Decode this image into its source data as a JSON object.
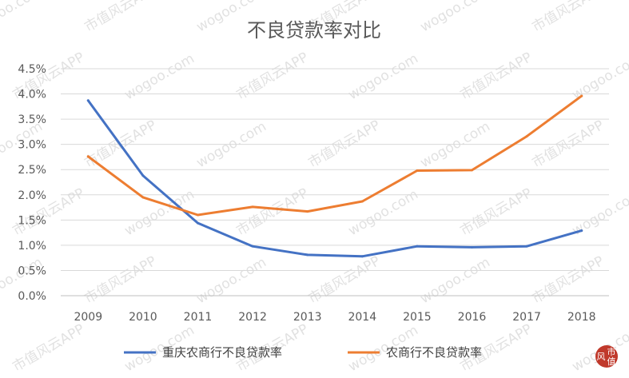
{
  "chart_data": {
    "type": "line",
    "title": "不良贷款率对比",
    "xlabel": "",
    "ylabel": "",
    "categories": [
      "2009",
      "2010",
      "2011",
      "2012",
      "2013",
      "2014",
      "2015",
      "2016",
      "2017",
      "2018"
    ],
    "ylim": [
      0,
      4.5
    ],
    "yticks": [
      "0.0%",
      "0.5%",
      "1.0%",
      "1.5%",
      "2.0%",
      "2.5%",
      "3.0%",
      "3.5%",
      "4.0%",
      "4.5%"
    ],
    "grid": true,
    "legend_position": "bottom",
    "series": [
      {
        "name": "重庆农商行不良贷款率",
        "color": "#4472C4",
        "values": [
          3.87,
          2.38,
          1.44,
          0.98,
          0.81,
          0.78,
          0.98,
          0.96,
          0.98,
          1.29
        ]
      },
      {
        "name": "农商行不良贷款率",
        "color": "#ED7D31",
        "values": [
          2.76,
          1.95,
          1.6,
          1.76,
          1.67,
          1.87,
          2.48,
          2.49,
          3.16,
          3.96
        ]
      }
    ]
  },
  "watermark": {
    "text_site": "wogoo.com",
    "text_app": "市值风云APP"
  },
  "seal": {
    "line1": "风",
    "line2": "市",
    "line3": "值",
    "color": "#c0392b"
  }
}
